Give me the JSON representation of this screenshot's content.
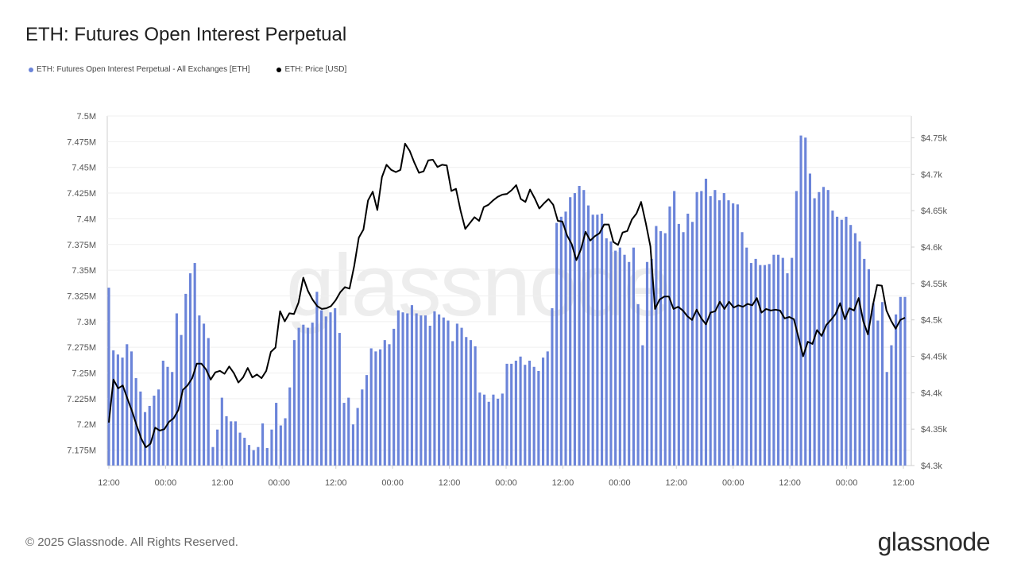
{
  "title": "ETH: Futures Open Interest Perpetual",
  "legend": {
    "series1": {
      "label": "ETH: Futures Open Interest Perpetual - All Exchanges [ETH]",
      "color": "#6b84d9"
    },
    "series2": {
      "label": "ETH: Price [USD]",
      "color": "#000000"
    }
  },
  "footer": {
    "copyright": "© 2025 Glassnode. All Rights Reserved.",
    "logo": "glassnode"
  },
  "watermark": "glassnode",
  "chart_data": {
    "type": "bar+line",
    "x_tick_labels": [
      "12:00",
      "00:00",
      "12:00",
      "00:00",
      "12:00",
      "00:00",
      "12:00",
      "00:00",
      "12:00",
      "00:00",
      "12:00",
      "00:00",
      "12:00",
      "00:00",
      "12:00"
    ],
    "y_left": {
      "min": 7.16,
      "max": 7.5,
      "ticks": [
        7.175,
        7.2,
        7.225,
        7.25,
        7.275,
        7.3,
        7.325,
        7.35,
        7.375,
        7.4,
        7.425,
        7.45,
        7.475,
        7.5
      ],
      "tick_labels": [
        "7.175M",
        "7.2M",
        "7.225M",
        "7.25M",
        "7.275M",
        "7.3M",
        "7.325M",
        "7.35M",
        "7.375M",
        "7.4M",
        "7.425M",
        "7.45M",
        "7.475M",
        "7.5M"
      ]
    },
    "y_right": {
      "min": 4300,
      "max": 4780,
      "ticks": [
        4300,
        4350,
        4400,
        4450,
        4500,
        4550,
        4600,
        4650,
        4700,
        4750
      ],
      "tick_labels": [
        "$4.3k",
        "$4.35k",
        "$4.4k",
        "$4.45k",
        "$4.5k",
        "$4.55k",
        "$4.6k",
        "$4.65k",
        "$4.7k",
        "$4.75k"
      ]
    },
    "series": [
      {
        "name": "ETH: Futures Open Interest Perpetual - All Exchanges [ETH]",
        "axis": "left",
        "kind": "bar",
        "color": "#6b84d9",
        "values": [
          7.333,
          7.272,
          7.268,
          7.265,
          7.278,
          7.271,
          7.245,
          7.232,
          7.212,
          7.218,
          7.228,
          7.234,
          7.262,
          7.256,
          7.251,
          7.308,
          7.287,
          7.327,
          7.347,
          7.357,
          7.306,
          7.298,
          7.284,
          7.178,
          7.195,
          7.226,
          7.208,
          7.203,
          7.203,
          7.192,
          7.187,
          7.18,
          7.175,
          7.178,
          7.201,
          7.177,
          7.195,
          7.221,
          7.199,
          7.206,
          7.236,
          7.282,
          7.294,
          7.297,
          7.294,
          7.299,
          7.329,
          7.311,
          7.305,
          7.309,
          7.313,
          7.289,
          7.221,
          7.226,
          7.2,
          7.216,
          7.234,
          7.248,
          7.274,
          7.271,
          7.273,
          7.282,
          7.278,
          7.293,
          7.311,
          7.309,
          7.308,
          7.316,
          7.308,
          7.306,
          7.306,
          7.296,
          7.31,
          7.307,
          7.304,
          7.301,
          7.281,
          7.298,
          7.294,
          7.285,
          7.282,
          7.276,
          7.231,
          7.229,
          7.222,
          7.229,
          7.225,
          7.23,
          7.259,
          7.259,
          7.262,
          7.266,
          7.258,
          7.262,
          7.256,
          7.252,
          7.265,
          7.271,
          7.313,
          7.396,
          7.402,
          7.407,
          7.421,
          7.425,
          7.432,
          7.428,
          7.413,
          7.404,
          7.404,
          7.405,
          7.381,
          7.378,
          7.369,
          7.372,
          7.365,
          7.358,
          7.372,
          7.317,
          7.277,
          7.358,
          7.361,
          7.393,
          7.388,
          7.386,
          7.412,
          7.427,
          7.395,
          7.387,
          7.405,
          7.397,
          7.426,
          7.427,
          7.439,
          7.422,
          7.428,
          7.418,
          7.425,
          7.418,
          7.415,
          7.414,
          7.387,
          7.372,
          7.357,
          7.361,
          7.355,
          7.355,
          7.356,
          7.365,
          7.365,
          7.362,
          7.347,
          7.362,
          7.427,
          7.481,
          7.479,
          7.444,
          7.42,
          7.426,
          7.431,
          7.428,
          7.408,
          7.402,
          7.399,
          7.402,
          7.394,
          7.386,
          7.378,
          7.361,
          7.351,
          7.318,
          7.301,
          7.319,
          7.251,
          7.277,
          7.307,
          7.324,
          7.324
        ]
      },
      {
        "name": "ETH: Price [USD]",
        "axis": "right",
        "kind": "line",
        "color": "#000000",
        "values": [
          4359,
          4418,
          4406,
          4410,
          4392,
          4375,
          4355,
          4337,
          4325,
          4330,
          4352,
          4348,
          4350,
          4360,
          4365,
          4376,
          4404,
          4410,
          4420,
          4440,
          4440,
          4432,
          4418,
          4428,
          4430,
          4426,
          4436,
          4427,
          4414,
          4421,
          4434,
          4421,
          4425,
          4420,
          4430,
          4456,
          4462,
          4512,
          4498,
          4509,
          4508,
          4524,
          4558,
          4540,
          4528,
          4519,
          4515,
          4516,
          4519,
          4527,
          4538,
          4545,
          4543,
          4574,
          4613,
          4624,
          4664,
          4676,
          4651,
          4696,
          4713,
          4706,
          4703,
          4706,
          4742,
          4732,
          4716,
          4702,
          4704,
          4719,
          4720,
          4710,
          4713,
          4712,
          4677,
          4680,
          4650,
          4625,
          4633,
          4641,
          4636,
          4655,
          4658,
          4664,
          4669,
          4672,
          4673,
          4678,
          4685,
          4666,
          4662,
          4679,
          4667,
          4653,
          4660,
          4666,
          4658,
          4636,
          4635,
          4616,
          4604,
          4582,
          4597,
          4621,
          4609,
          4615,
          4619,
          4631,
          4631,
          4607,
          4603,
          4620,
          4622,
          4638,
          4646,
          4662,
          4633,
          4601,
          4515,
          4528,
          4532,
          4532,
          4515,
          4518,
          4513,
          4505,
          4500,
          4514,
          4502,
          4494,
          4510,
          4512,
          4525,
          4515,
          4525,
          4517,
          4520,
          4518,
          4522,
          4520,
          4530,
          4510,
          4515,
          4513,
          4514,
          4513,
          4502,
          4504,
          4501,
          4476,
          4450,
          4470,
          4467,
          4486,
          4478,
          4493,
          4500,
          4508,
          4523,
          4501,
          4516,
          4513,
          4530,
          4498,
          4480,
          4518,
          4548,
          4547,
          4513,
          4499,
          4488,
          4500,
          4503
        ]
      }
    ]
  }
}
